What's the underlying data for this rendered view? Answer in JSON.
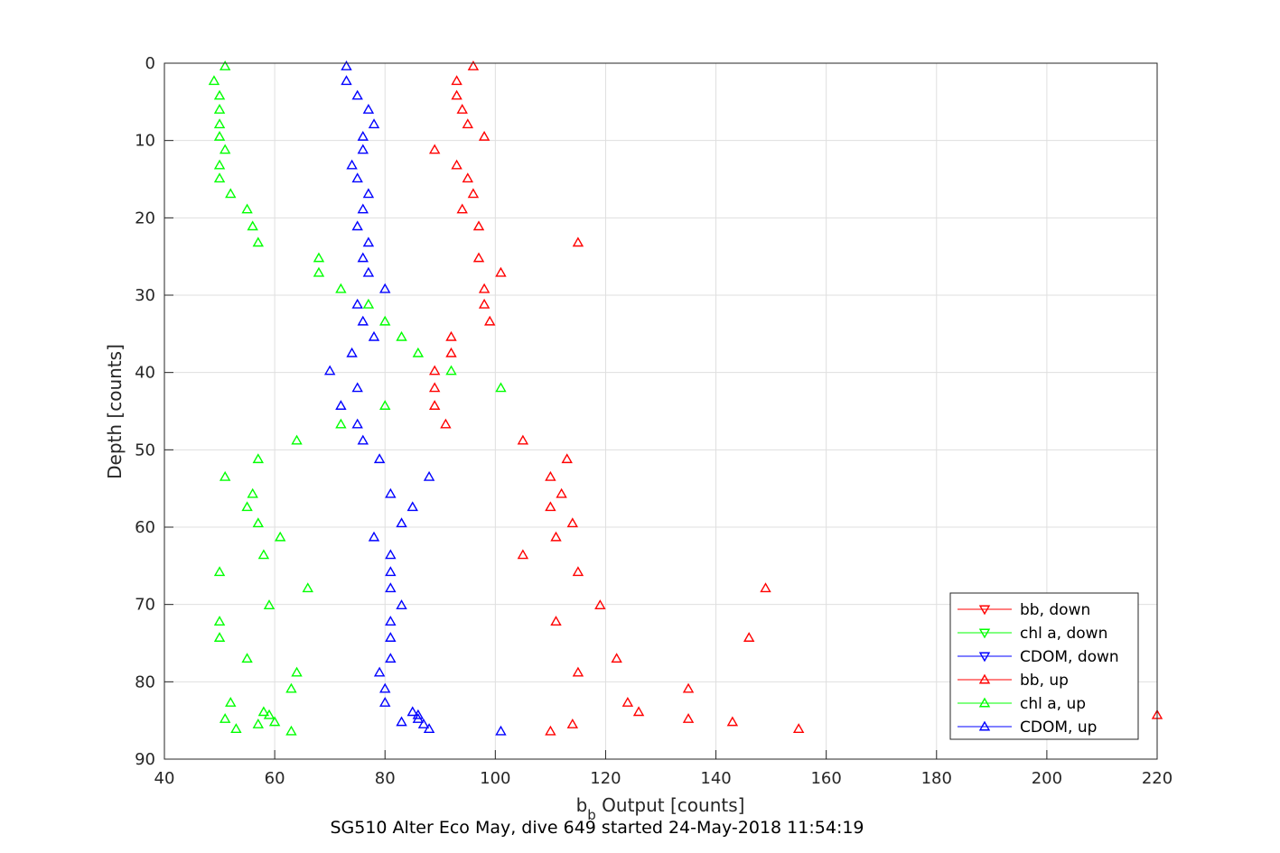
{
  "chart_data": {
    "type": "scatter",
    "title": "SG510 Alter Eco May, dive 649 started 24-May-2018 11:54:19",
    "xlabel_main": "b",
    "xlabel_sub": "b",
    "xlabel_rest": " Output [counts]",
    "ylabel": "Depth [counts]",
    "xlim": [
      40,
      220
    ],
    "ylim": [
      0,
      90
    ],
    "y_reversed": true,
    "grid": true,
    "legend_position": "bottom-right",
    "xticks": [
      40,
      60,
      80,
      100,
      120,
      140,
      160,
      180,
      200,
      220
    ],
    "yticks": [
      0,
      10,
      20,
      30,
      40,
      50,
      60,
      70,
      80,
      90
    ],
    "depths": [
      0.4,
      2.3,
      4.2,
      6.0,
      7.9,
      9.5,
      11.2,
      13.2,
      14.9,
      16.9,
      18.9,
      21.1,
      23.2,
      25.2,
      27.1,
      29.2,
      31.2,
      33.4,
      35.4,
      37.5,
      39.8,
      42.0,
      44.3,
      46.7,
      48.8,
      51.2,
      53.5,
      55.7,
      57.4,
      59.5,
      61.3,
      63.6,
      65.8,
      67.9,
      70.1,
      72.2,
      74.3,
      77.0,
      78.8,
      80.9,
      82.7,
      83.9,
      84.3,
      84.8,
      85.2,
      85.5,
      86.1,
      86.4
    ],
    "series": [
      {
        "name": "bb, down",
        "color": "#ff0000",
        "marker": "triangle-down",
        "x": [],
        "y": []
      },
      {
        "name": "chl a, down",
        "color": "#00ff00",
        "marker": "triangle-down",
        "x": [],
        "y": []
      },
      {
        "name": "CDOM, down",
        "color": "#0000ff",
        "marker": "triangle-down",
        "x": [],
        "y": []
      },
      {
        "name": "bb, up",
        "color": "#ff0000",
        "marker": "triangle-up",
        "x": [
          96,
          93,
          93,
          94,
          95,
          98,
          89,
          93,
          95,
          96,
          94,
          97,
          115,
          97,
          101,
          98,
          98,
          99,
          92,
          92,
          89,
          89,
          89,
          91,
          105,
          113,
          110,
          112,
          110,
          114,
          111,
          105,
          115,
          149,
          119,
          111,
          146,
          122,
          115,
          135,
          124,
          126,
          220,
          135,
          143,
          114,
          155,
          110
        ]
      },
      {
        "name": "chl a, up",
        "color": "#00ff00",
        "marker": "triangle-up",
        "x": [
          51,
          49,
          50,
          50,
          50,
          50,
          51,
          50,
          50,
          52,
          55,
          56,
          57,
          68,
          68,
          72,
          77,
          80,
          83,
          86,
          92,
          101,
          80,
          72,
          64,
          57,
          51,
          56,
          55,
          57,
          61,
          58,
          50,
          66,
          59,
          50,
          50,
          55,
          64,
          63,
          52,
          58,
          59,
          51,
          60,
          57,
          53,
          63
        ]
      },
      {
        "name": "CDOM, up",
        "color": "#0000ff",
        "marker": "triangle-up",
        "x": [
          73,
          73,
          75,
          77,
          78,
          76,
          76,
          74,
          75,
          77,
          76,
          75,
          77,
          76,
          77,
          80,
          75,
          76,
          78,
          74,
          70,
          75,
          72,
          75,
          76,
          79,
          88,
          81,
          85,
          83,
          78,
          81,
          81,
          81,
          83,
          81,
          81,
          81,
          79,
          80,
          80,
          85,
          86,
          86,
          83,
          87,
          88,
          101
        ]
      }
    ]
  }
}
